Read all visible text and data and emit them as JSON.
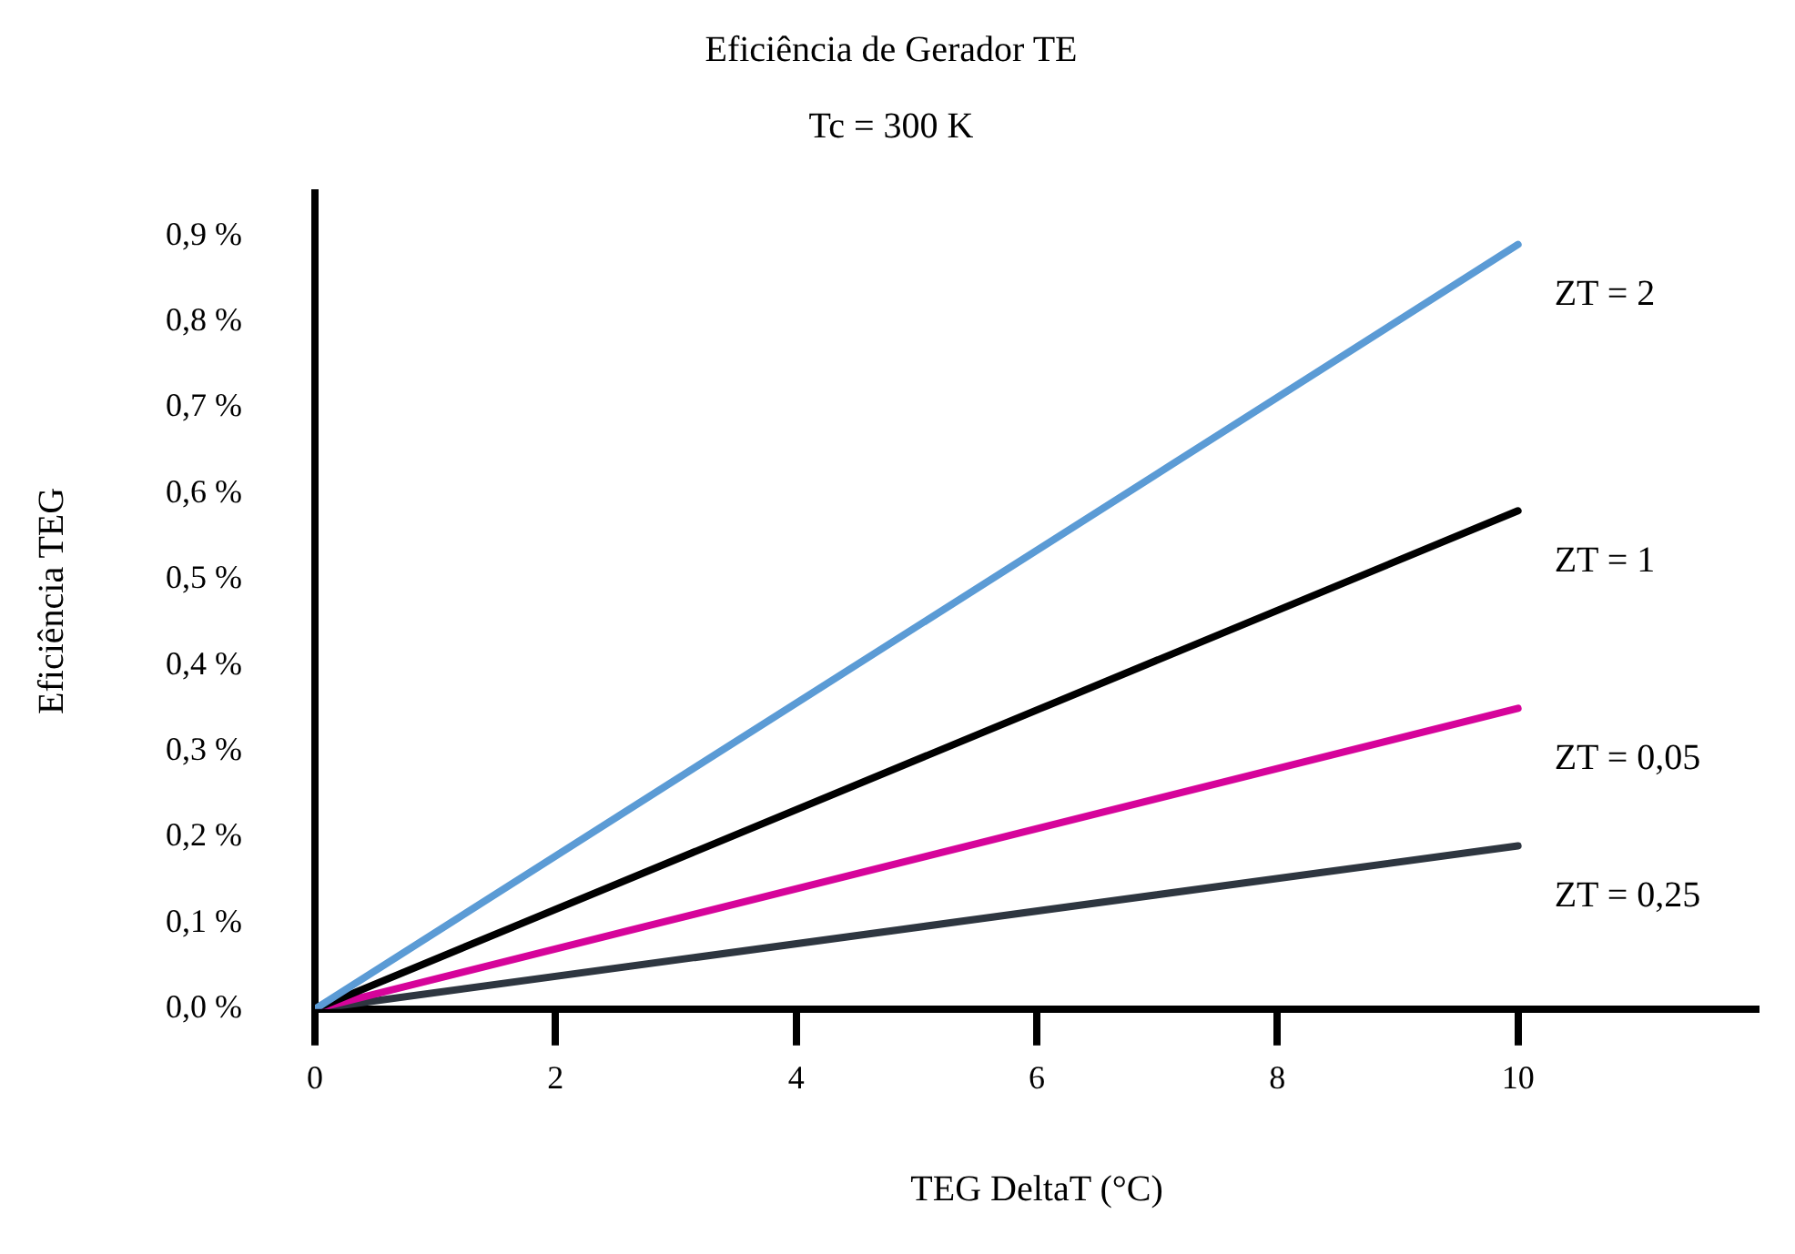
{
  "chart_data": {
    "type": "line",
    "title": "Eficiência de Gerador TE",
    "subtitle": "Tc = 300 K",
    "xlabel": "TEG DeltaT (°C)",
    "ylabel": "Eficiência TEG",
    "x": [
      0,
      10
    ],
    "series": [
      {
        "name": "ZT = 2",
        "color": "#5b9bd5",
        "values": [
          0,
          0.89
        ]
      },
      {
        "name": "ZT = 1",
        "color": "#000000",
        "values": [
          0,
          0.58
        ]
      },
      {
        "name": "ZT = 0,05",
        "color": "#d6049a",
        "values": [
          0,
          0.35
        ]
      },
      {
        "name": "ZT = 0,25",
        "color": "#2e3640",
        "values": [
          0,
          0.19
        ]
      }
    ],
    "xlim": [
      0,
      12
    ],
    "xticks": [
      0,
      2,
      4,
      6,
      8,
      10
    ],
    "ylim": [
      0,
      0.95
    ],
    "yticks": [
      {
        "value": 0,
        "label": "0,0 %"
      },
      {
        "value": 0.1,
        "label": "0,1 %"
      },
      {
        "value": 0.2,
        "label": "0,2 %"
      },
      {
        "value": 0.3,
        "label": "0,3 %"
      },
      {
        "value": 0.4,
        "label": "0,4 %"
      },
      {
        "value": 0.5,
        "label": "0,5 %"
      },
      {
        "value": 0.6,
        "label": "0,6 %"
      },
      {
        "value": 0.7,
        "label": "0,7 %"
      },
      {
        "value": 0.8,
        "label": "0,8 %"
      },
      {
        "value": 0.9,
        "label": "0,9 %"
      }
    ],
    "grid": false,
    "legend": false,
    "marker": "none",
    "line_style": "solid"
  }
}
